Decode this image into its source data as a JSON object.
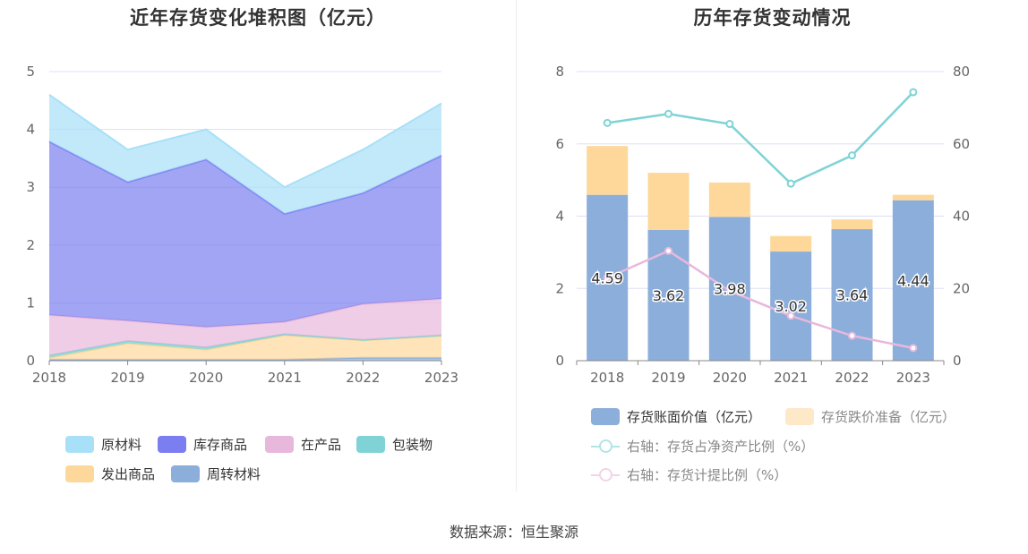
{
  "left_chart": {
    "title": "近年存货变化堆积图（亿元）",
    "legend": [
      {
        "name": "原材料",
        "color": "#a8e0f8"
      },
      {
        "name": "库存商品",
        "color": "#7b7ef0"
      },
      {
        "name": "在产品",
        "color": "#e8b8dc"
      },
      {
        "name": "包装物",
        "color": "#7fd3d6"
      },
      {
        "name": "发出商品",
        "color": "#fdd89a"
      },
      {
        "name": "周转材料",
        "color": "#8caedb"
      }
    ]
  },
  "right_chart": {
    "title": "历年存货变动情况",
    "legend": [
      {
        "name": "存货账面价值（亿元）",
        "color": "#8caedb"
      },
      {
        "name": "存货跌价准备（亿元）",
        "color": "#fde8c8"
      },
      {
        "name": "右轴：存货占净资产比例（%）",
        "color": "#7fd3d6"
      },
      {
        "name": "右轴：存货计提比例（%）",
        "color": "#e8b8dc"
      }
    ]
  },
  "source": "数据来源：恒生聚源",
  "chart_data": [
    {
      "type": "area",
      "stacked": true,
      "title": "近年存货变化堆积图（亿元）",
      "x": [
        "2018",
        "2019",
        "2020",
        "2021",
        "2022",
        "2023"
      ],
      "ylim": [
        0,
        5
      ],
      "yticks": [
        "0",
        "1",
        "2",
        "3",
        "4",
        "5"
      ],
      "grid": true,
      "legend_position": "bottom",
      "series": [
        {
          "name": "周转材料",
          "color": "#8caedb",
          "values": [
            0.02,
            0.02,
            0.02,
            0.02,
            0.05,
            0.05
          ]
        },
        {
          "name": "发出商品",
          "color": "#fdd89a",
          "values": [
            0.03,
            0.28,
            0.17,
            0.42,
            0.3,
            0.38
          ]
        },
        {
          "name": "包装物",
          "color": "#7fd3d6",
          "values": [
            0.04,
            0.04,
            0.04,
            0.02,
            0.01,
            0.01
          ]
        },
        {
          "name": "在产品",
          "color": "#e8b8dc",
          "values": [
            0.7,
            0.35,
            0.35,
            0.21,
            0.62,
            0.63
          ]
        },
        {
          "name": "库存商品",
          "color": "#7b7ef0",
          "values": [
            3.0,
            2.4,
            2.9,
            1.87,
            1.92,
            2.48
          ]
        },
        {
          "name": "原材料",
          "color": "#a8e0f8",
          "values": [
            0.81,
            0.56,
            0.52,
            0.46,
            0.75,
            0.9
          ]
        }
      ]
    },
    {
      "type": "bar",
      "stacked": true,
      "title": "历年存货变动情况",
      "categories": [
        "2018",
        "2019",
        "2020",
        "2021",
        "2022",
        "2023"
      ],
      "ylim": [
        0,
        8
      ],
      "yticks": [
        "0",
        "2",
        "4",
        "6",
        "8"
      ],
      "y2lim": [
        0,
        80
      ],
      "y2ticks": [
        "0",
        "20",
        "40",
        "60",
        "80"
      ],
      "grid": true,
      "legend_position": "bottom",
      "series": [
        {
          "name": "存货账面价值（亿元）",
          "color": "#8caedb",
          "axis": "left",
          "values": [
            4.59,
            3.62,
            3.98,
            3.02,
            3.64,
            4.44
          ],
          "labels": [
            "4.59",
            "3.62",
            "3.98",
            "3.02",
            "3.64",
            "4.44"
          ]
        },
        {
          "name": "存货跌价准备（亿元）",
          "color": "#fdd89a",
          "axis": "left",
          "values": [
            1.35,
            1.58,
            0.95,
            0.43,
            0.27,
            0.15
          ]
        },
        {
          "name": "右轴：存货占净资产比例（%）",
          "type": "line",
          "color": "#7fd3d6",
          "axis": "right",
          "values": [
            65.8,
            68.3,
            65.5,
            49.0,
            56.8,
            74.3
          ]
        },
        {
          "name": "右轴：存货计提比例（%）",
          "type": "line",
          "color": "#e8b8dc",
          "axis": "right",
          "values": [
            22.9,
            30.4,
            19.3,
            12.4,
            6.9,
            3.5
          ]
        }
      ]
    }
  ]
}
